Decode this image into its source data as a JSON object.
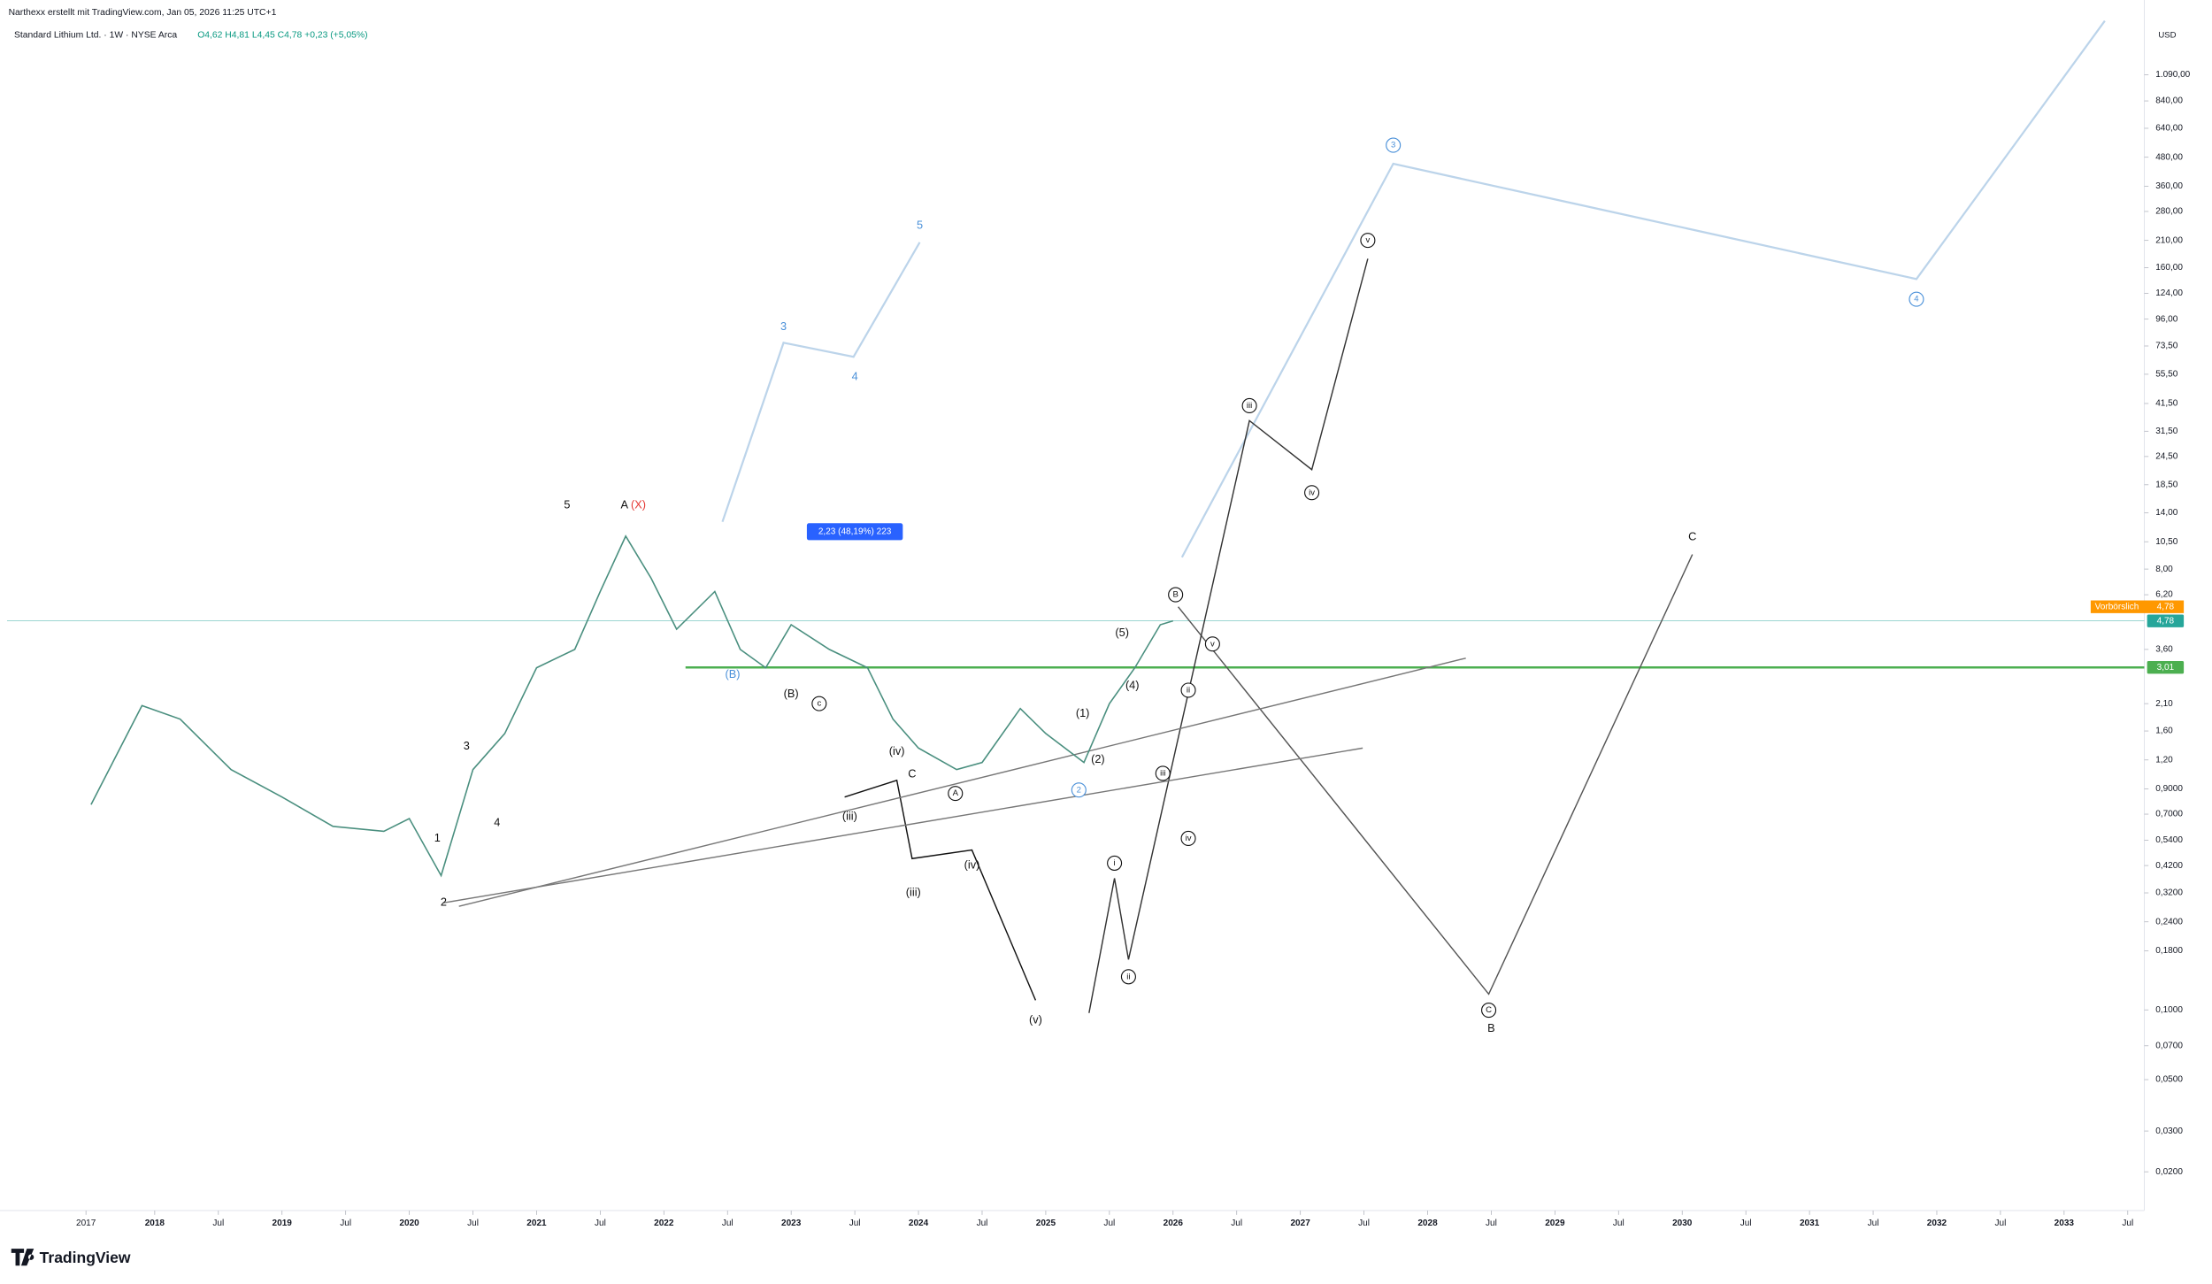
{
  "header": {
    "byline": "Narthexx erstellt mit TradingView.com, Jan 05, 2026 11:25 UTC+1",
    "symbol": "Standard Lithium Ltd. · 1W · NYSE Arca",
    "ohlc": "O4,62 H4,81 L4,45 C4,78 +0,23 (+5,05%)",
    "currency": "USD",
    "logo": "TradingView"
  },
  "chart_data": {
    "type": "line",
    "log_scale": true,
    "color": "#4a8f7f",
    "x": [
      2017.5,
      2017.9,
      2018.2,
      2018.6,
      2019.0,
      2019.4,
      2019.8,
      2020.0,
      2020.25,
      2020.5,
      2020.75,
      2021.0,
      2021.3,
      2021.5,
      2021.7,
      2021.9,
      2022.1,
      2022.4,
      2022.6,
      2022.8,
      2023.0,
      2023.3,
      2023.6,
      2023.8,
      2024.0,
      2024.3,
      2024.5,
      2024.8,
      2025.0,
      2025.3,
      2025.5,
      2025.7,
      2025.9,
      2026.0
    ],
    "values": [
      0.77,
      2.06,
      1.8,
      1.09,
      0.83,
      0.62,
      0.59,
      0.67,
      0.38,
      1.09,
      1.56,
      3.0,
      3.6,
      6.4,
      11.1,
      7.3,
      4.4,
      6.4,
      3.6,
      3.0,
      4.6,
      3.6,
      3.0,
      1.8,
      1.35,
      1.09,
      1.17,
      2.0,
      1.56,
      1.17,
      2.1,
      3.0,
      4.6,
      4.78
    ],
    "xlim": [
      2016.84,
      2033.63
    ],
    "ylim": [
      0.0136,
      2290
    ],
    "xticks": [
      {
        "value": 2017.46,
        "label": "2017"
      },
      2018,
      {
        "value": 2018.5,
        "label": "Jul"
      },
      2019,
      {
        "value": 2019.5,
        "label": "Jul"
      },
      2020,
      {
        "value": 2020.5,
        "label": "Jul"
      },
      2021,
      {
        "value": 2021.5,
        "label": "Jul"
      },
      2022,
      {
        "value": 2022.5,
        "label": "Jul"
      },
      2023,
      {
        "value": 2023.5,
        "label": "Jul"
      },
      2024,
      {
        "value": 2024.5,
        "label": "Jul"
      },
      2025,
      {
        "value": 2025.5,
        "label": "Jul"
      },
      2026,
      {
        "value": 2026.5,
        "label": "Jul"
      },
      2027,
      {
        "value": 2027.5,
        "label": "Jul"
      },
      2028,
      {
        "value": 2028.5,
        "label": "Jul"
      },
      2029,
      {
        "value": 2029.5,
        "label": "Jul"
      },
      2030,
      {
        "value": 2030.5,
        "label": "Jul"
      },
      2031,
      {
        "value": 2031.5,
        "label": "Jul"
      },
      2032,
      {
        "value": 2032.5,
        "label": "Jul"
      },
      2033,
      {
        "value": 2033.5,
        "label": "Jul"
      }
    ],
    "yticks": [
      {
        "value": 1090,
        "label": "1.090,00"
      },
      {
        "value": 840,
        "label": "840,00"
      },
      {
        "value": 640,
        "label": "640,00"
      },
      {
        "value": 480,
        "label": "480,00"
      },
      {
        "value": 360,
        "label": "360,00"
      },
      {
        "value": 280,
        "label": "280,00"
      },
      {
        "value": 210,
        "label": "210,00"
      },
      {
        "value": 160,
        "label": "160,00"
      },
      {
        "value": 124,
        "label": "124,00"
      },
      {
        "value": 96,
        "label": "96,00"
      },
      {
        "value": 73.5,
        "label": "73,50"
      },
      {
        "value": 55.5,
        "label": "55,50"
      },
      {
        "value": 41.5,
        "label": "41,50"
      },
      {
        "value": 31.5,
        "label": "31,50"
      },
      {
        "value": 24.5,
        "label": "24,50"
      },
      {
        "value": 18.5,
        "label": "18,50"
      },
      {
        "value": 14,
        "label": "14,00"
      },
      {
        "value": 10.5,
        "label": "10,50"
      },
      {
        "value": 8,
        "label": "8,00"
      },
      {
        "value": 6.2,
        "label": "6,20"
      },
      {
        "value": 3.6,
        "label": "3,60"
      },
      {
        "value": 2.1,
        "label": "2,10"
      },
      {
        "value": 1.6,
        "label": "1,60"
      },
      {
        "value": 1.2,
        "label": "1,20"
      },
      {
        "value": 0.9,
        "label": "0,9000"
      },
      {
        "value": 0.7,
        "label": "0,7000"
      },
      {
        "value": 0.54,
        "label": "0,5400"
      },
      {
        "value": 0.42,
        "label": "0,4200"
      },
      {
        "value": 0.32,
        "label": "0,3200"
      },
      {
        "value": 0.24,
        "label": "0,2400"
      },
      {
        "value": 0.18,
        "label": "0,1800"
      },
      {
        "value": 0.1,
        "label": "0,1000"
      },
      {
        "value": 0.07,
        "label": "0,0700"
      },
      {
        "value": 0.05,
        "label": "0,0500"
      },
      {
        "value": 0.03,
        "label": "0,0300"
      },
      {
        "value": 0.02,
        "label": "0,0200"
      }
    ],
    "hlines": [
      {
        "value": 3.01,
        "label": "3,01",
        "color": "#4caf50",
        "start": 2022.17
      },
      {
        "value": 4.78,
        "label": "4,78",
        "color": "#26a69a",
        "start": 2016.84
      }
    ],
    "premarket": {
      "label": "Vorbörslich",
      "value": 4.78,
      "value_label": "4,78",
      "color": "#ff9800"
    },
    "measure": {
      "label": "2,23 (48,19%) 223",
      "x": 2023.5,
      "y": 11.6
    },
    "drawings": [
      {
        "color": "#bcd4ea",
        "x": [
          2026.07,
          2027.73,
          2031.84,
          2033.32
        ],
        "y": [
          9.0,
          450,
          143,
          1862
        ]
      },
      {
        "color": "#bcd4ea",
        "x": [
          2022.46,
          2022.94,
          2023.49,
          2024.01
        ],
        "y": [
          12.8,
          75.9,
          66,
          206
        ]
      },
      {
        "color": "#555555",
        "x": [
          2026.04,
          2028.48,
          2030.08
        ],
        "y": [
          5.5,
          0.117,
          9.25
        ]
      },
      {
        "color": "#333333",
        "x": [
          2025.34,
          2025.54,
          2025.65,
          2026.6,
          2027.09,
          2027.53
        ],
        "y": [
          0.097,
          0.37,
          0.165,
          35,
          21.5,
          175
        ]
      },
      {
        "color": "#111111",
        "x": [
          2023.42,
          2023.83,
          2023.95,
          2024.42,
          2024.92
        ],
        "y": [
          0.83,
          0.98,
          0.45,
          0.49,
          0.11
        ]
      },
      {
        "color": "#777777",
        "x": [
          2020.27,
          2027.49
        ],
        "y": [
          0.29,
          1.35
        ]
      },
      {
        "color": "#777777",
        "x": [
          2020.39,
          2028.3
        ],
        "y": [
          0.28,
          3.3
        ]
      }
    ],
    "annotations": [
      {
        "text": "3",
        "x": 2027.73,
        "y": 541,
        "circled": true,
        "color": "#4a90d9"
      },
      {
        "text": "4",
        "x": 2031.84,
        "y": 117,
        "circled": true,
        "color": "#4a90d9"
      },
      {
        "text": "3",
        "x": 2022.94,
        "y": 88.7,
        "circled": false,
        "color": "#4a90d9"
      },
      {
        "text": "4",
        "x": 2023.5,
        "y": 54,
        "circled": false,
        "color": "#4a90d9"
      },
      {
        "text": "5",
        "x": 2024.01,
        "y": 243,
        "circled": false,
        "color": "#4a90d9"
      },
      {
        "text": "C",
        "x": 2030.08,
        "y": 10.96,
        "circled": false,
        "color": "#111111"
      },
      {
        "text": "B",
        "x": 2028.5,
        "y": 0.083,
        "circled": false,
        "color": "#111111"
      },
      {
        "text": "C",
        "x": 2028.48,
        "y": 0.0997,
        "circled": true,
        "color": "#111111"
      },
      {
        "text": "i",
        "x": 2025.54,
        "y": 0.43,
        "circled": true,
        "color": "#111111"
      },
      {
        "text": "ii",
        "x": 2025.65,
        "y": 0.139,
        "circled": true,
        "color": "#111111"
      },
      {
        "text": "iii",
        "x": 2026.6,
        "y": 40.6,
        "circled": true,
        "color": "#111111"
      },
      {
        "text": "iv",
        "x": 2027.09,
        "y": 17.1,
        "circled": true,
        "color": "#111111"
      },
      {
        "text": "v",
        "x": 2027.53,
        "y": 210,
        "circled": true,
        "color": "#111111"
      },
      {
        "text": "(iv)",
        "x": 2024.42,
        "y": 0.42,
        "circled": false,
        "color": "#111111"
      },
      {
        "text": "(v)",
        "x": 2024.92,
        "y": 0.09,
        "circled": false,
        "color": "#111111"
      },
      {
        "text": "(iii)",
        "x": 2023.46,
        "y": 0.68,
        "circled": false,
        "color": "#111111"
      },
      {
        "text": "(iii)",
        "x": 2023.96,
        "y": 0.32,
        "circled": false,
        "color": "#111111"
      },
      {
        "text": "5",
        "x": 2021.24,
        "y": 15.1,
        "circled": false,
        "color": "#111111"
      },
      {
        "text": "A",
        "x": 2021.69,
        "y": 15.1,
        "circled": false,
        "color": "#111111"
      },
      {
        "text": "3",
        "x": 2020.45,
        "y": 1.37,
        "circled": false,
        "color": "#111111"
      },
      {
        "text": "4",
        "x": 2020.69,
        "y": 0.64,
        "circled": false,
        "color": "#111111"
      },
      {
        "text": "1",
        "x": 2020.22,
        "y": 0.55,
        "circled": false,
        "color": "#111111"
      },
      {
        "text": "2",
        "x": 2020.27,
        "y": 0.29,
        "circled": false,
        "color": "#111111"
      },
      {
        "text": "C",
        "x": 2023.95,
        "y": 1.04,
        "circled": false,
        "color": "#111111"
      },
      {
        "text": "(iv)",
        "x": 2023.83,
        "y": 1.3,
        "circled": false,
        "color": "#111111"
      },
      {
        "text": "A",
        "x": 2024.29,
        "y": 0.86,
        "circled": true,
        "color": "#111111"
      },
      {
        "text": "2",
        "x": 2025.26,
        "y": 0.89,
        "circled": true,
        "color": "#4a90d9"
      },
      {
        "text": "B",
        "x": 2026.02,
        "y": 6.2,
        "circled": true,
        "color": "#111111"
      },
      {
        "text": "(5)",
        "x": 2025.6,
        "y": 4.22,
        "circled": false,
        "color": "#111111"
      },
      {
        "text": "(4)",
        "x": 2025.68,
        "y": 2.5,
        "circled": false,
        "color": "#111111"
      },
      {
        "text": "(2)",
        "x": 2025.41,
        "y": 1.2,
        "circled": false,
        "color": "#111111"
      },
      {
        "text": "(1)",
        "x": 2025.29,
        "y": 1.9,
        "circled": false,
        "color": "#111111"
      },
      {
        "text": "iii",
        "x": 2025.92,
        "y": 1.05,
        "circled": true,
        "color": "#111111"
      },
      {
        "text": "iv",
        "x": 2026.12,
        "y": 0.55,
        "circled": true,
        "color": "#111111"
      },
      {
        "text": "ii",
        "x": 2026.12,
        "y": 2.4,
        "circled": true,
        "color": "#111111"
      },
      {
        "text": "v",
        "x": 2026.31,
        "y": 3.8,
        "circled": true,
        "color": "#111111"
      },
      {
        "text": "(B)",
        "x": 2023.0,
        "y": 2.3,
        "circled": false,
        "color": "#111111"
      },
      {
        "text": "c",
        "x": 2023.22,
        "y": 2.1,
        "circled": true,
        "color": "#111111"
      },
      {
        "text": "(B)",
        "x": 2022.54,
        "y": 2.8,
        "circled": false,
        "color": "#4a90d9"
      },
      {
        "text": "(X)",
        "x": 2021.8,
        "y": 15.1,
        "circled": false,
        "color": "#e53935"
      }
    ]
  }
}
